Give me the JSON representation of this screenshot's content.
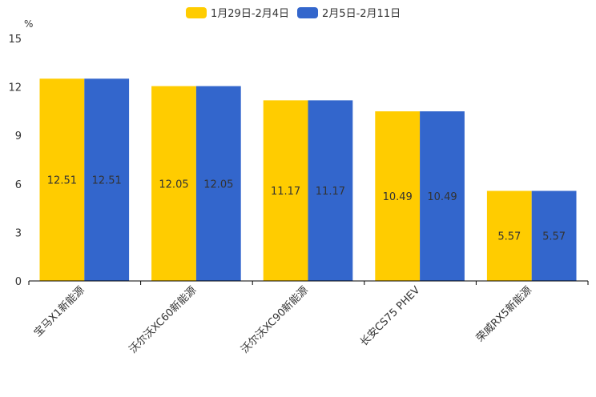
{
  "chart_data": {
    "type": "bar",
    "title": "",
    "xlabel": "",
    "ylabel": "%",
    "ylim": [
      0,
      15
    ],
    "yticks": [
      0,
      3,
      6,
      9,
      12,
      15
    ],
    "categories": [
      "宝马X1新能源",
      "沃尔沃XC60新能源",
      "沃尔沃XC90新能源",
      "长安CS75 PHEV",
      "荣威RX5新能源"
    ],
    "series": [
      {
        "name": "1月29日-2月4日",
        "color": "#FFCC00",
        "values": [
          12.51,
          12.05,
          11.17,
          10.49,
          5.57
        ]
      },
      {
        "name": "2月5日-2月11日",
        "color": "#3366CC",
        "values": [
          12.51,
          12.05,
          11.17,
          10.49,
          5.57
        ]
      }
    ],
    "legend_position": "top-center",
    "grid": false
  }
}
